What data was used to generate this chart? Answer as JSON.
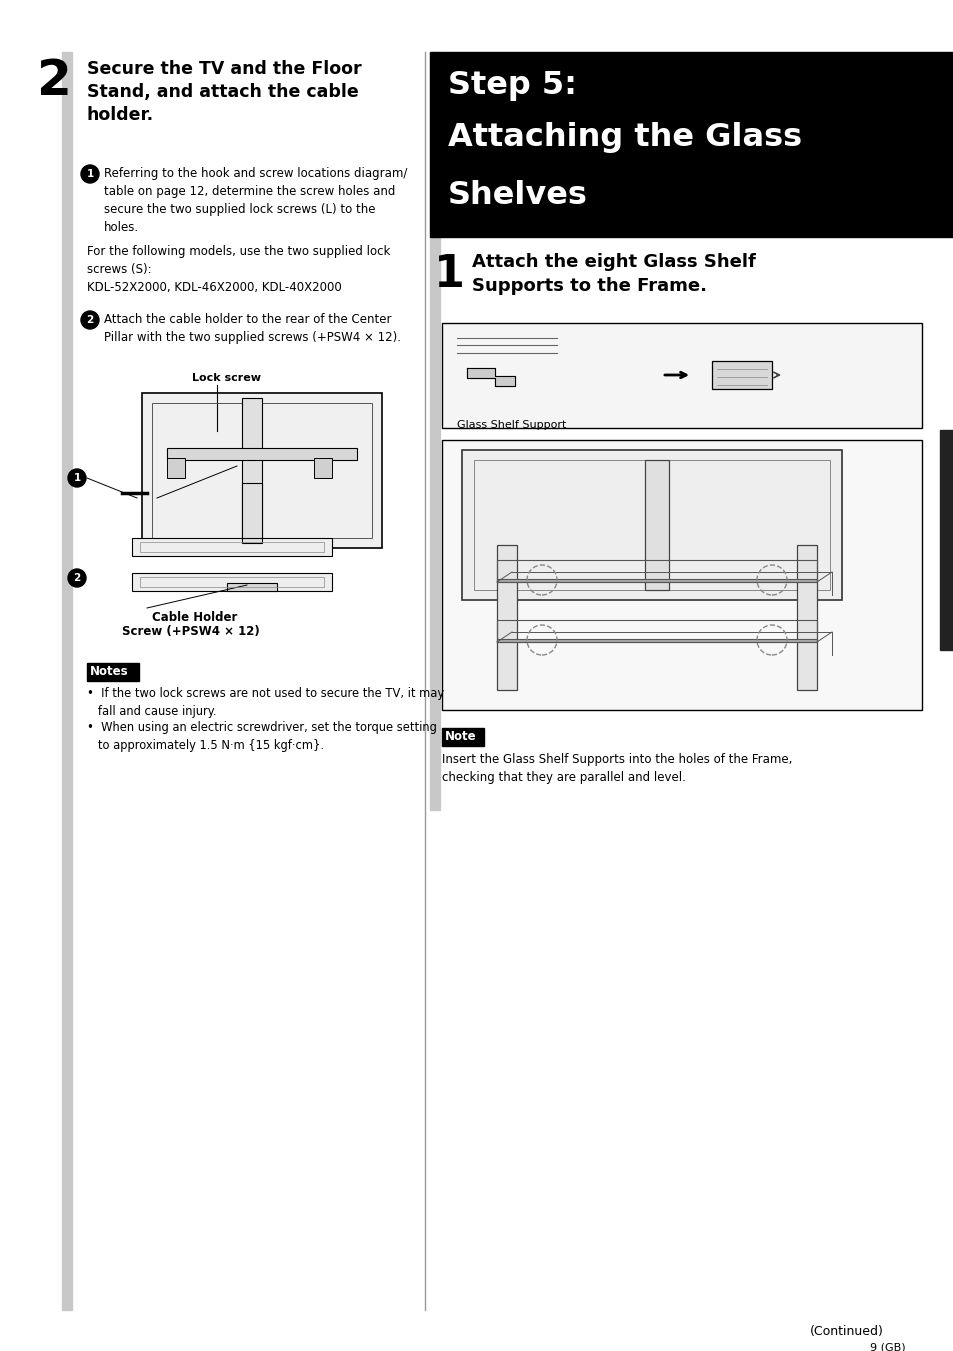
{
  "page_bg": "#ffffff",
  "header_step_title": "Step 5:",
  "header_step_subtitle1": "Attaching the Glass",
  "header_step_subtitle2": "Shelves",
  "header_bg": "#000000",
  "header_text_color": "#ffffff",
  "step2_number": "2",
  "step2_title": "Secure the TV and the Floor\nStand, and attach the cable\nholder.",
  "lock_screw_label": "Lock screw",
  "cable_holder_label": "Cable Holder",
  "screw_label": "Screw (+PSW4 × 12)",
  "notes_label": "Notes",
  "note1": "•  If the two lock screws are not used to secure the TV, it may\n   fall and cause injury.",
  "note2": "•  When using an electric screwdriver, set the torque setting\n   to approximately 1.5 N·m {15 kgf·cm}.",
  "right_step_num": "1",
  "right_step_title": "Attach the eight Glass Shelf\nSupports to the Frame.",
  "glass_shelf_label": "Glass Shelf Support",
  "note_label": "Note",
  "note_right": "Insert the Glass Shelf Supports into the holes of the Frame,\nchecking that they are parallel and level.",
  "continued_text": "(Continued)",
  "page_num": "9 (GB)",
  "gray_bar_color": "#c8c8c8",
  "notes_bg": "#000000",
  "notes_text_color": "#ffffff",
  "note_bg": "#000000",
  "divider_color": "#999999",
  "black_tab_color": "#222222",
  "body_text1_num": "①",
  "body_text1": "Referring to the hook and screw locations diagram/\ntable on page 12, determine the screw holes and\nsecure the two supplied lock screws (L) to the\nholes.",
  "for_models": "For the following models, use the two supplied lock\nscrews (S):\nKDL-52X2000, KDL-46X2000, KDL-40X2000",
  "body_text2_num": "②",
  "body_text2": "Attach the cable holder to the rear of the Center\nPillar with the two supplied screws (+PSW4 × 12)."
}
